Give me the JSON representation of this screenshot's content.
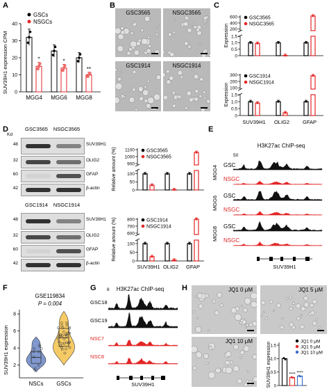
{
  "panels": {
    "A": {
      "letter": "A",
      "ylabel": "SUV39H1 expression CPM",
      "yticks": [
        "0",
        "10",
        "20",
        "30",
        "40"
      ],
      "legend": [
        "GSCs",
        "NSGCs"
      ],
      "groups": [
        "MGG4",
        "MGG6",
        "MGG8"
      ],
      "sig": [
        "*",
        "*",
        "**"
      ],
      "colors": {
        "gsc": "#000000",
        "nsgc": "#e32626"
      }
    },
    "B": {
      "letter": "B",
      "images": [
        {
          "caption": "GSC3565"
        },
        {
          "caption": "NSGC3565"
        },
        {
          "caption": "GSC1914"
        },
        {
          "caption": "NSGC1914"
        }
      ]
    },
    "C": {
      "letter": "C",
      "ylabel": "Expression",
      "top": {
        "legend": [
          "GSC3565",
          "NSGC3565"
        ],
        "yticks_low": [
          "0",
          "0.5",
          "1.0",
          "1.5"
        ],
        "yticks_high": [
          "200",
          "400",
          "600"
        ]
      },
      "bottom": {
        "legend": [
          "GSC1914",
          "NSGC1914"
        ],
        "yticks_low": [
          "0",
          "0.5",
          "1.0",
          "1.5"
        ],
        "yticks_high": [
          "100",
          "200",
          "300"
        ]
      },
      "genes": [
        "SUV39H1",
        "OLIG2",
        "GFAP"
      ]
    },
    "D": {
      "letter": "D",
      "kd": "Kd",
      "top": {
        "cols": [
          "GSC3565",
          "NSGC3565"
        ],
        "mw": [
          "48",
          "32",
          "60",
          "42"
        ],
        "bands": [
          "SUV39H1",
          "OLIG2",
          "GFAP",
          "β-actin"
        ],
        "ylabel": "Relative amount (%)",
        "legend": [
          "GSC3565",
          "NSGC3565"
        ],
        "yticks_low": [
          "0",
          "50",
          "100"
        ],
        "yticks_high": [
          "900",
          "1000",
          "1100"
        ]
      },
      "bottom": {
        "cols": [
          "GSC1914",
          "NSGC1914"
        ],
        "mw": [
          "48",
          "32",
          "60",
          "42"
        ],
        "bands": [
          "SUV39H1",
          "OLIG2",
          "GFAP",
          "β-actin"
        ],
        "ylabel": "Relative amount (%)",
        "legend": [
          "GSC1914",
          "NSGC1914"
        ],
        "yticks_low": [
          "0",
          "50",
          "100"
        ],
        "yticks_high": [
          "600",
          "700",
          "800"
        ]
      },
      "genes": [
        "SUV39H1",
        "OLIG2",
        "GFAP"
      ]
    },
    "E": {
      "letter": "E",
      "title": "H3K27ac ChIP-seq",
      "scale": "50",
      "rows": [
        {
          "sample": "MGG4",
          "tracks": [
            "GSC",
            "NSGC"
          ]
        },
        {
          "sample": "MGG6",
          "tracks": [
            "GSC",
            "NSGC"
          ]
        },
        {
          "sample": "MGG8",
          "tracks": [
            "GSC",
            "NSGC"
          ]
        }
      ],
      "gene": "SUV39H1"
    },
    "F": {
      "letter": "F",
      "dataset": "GSE119834",
      "pvalue": "P = 0.004",
      "ylabel": "SUV39H1 expression",
      "yticks": [
        "2",
        "4",
        "6",
        "8"
      ],
      "groups": [
        "NSCs",
        "GSCs"
      ],
      "colors": {
        "nscs": "#6a86c6",
        "gscs": "#f5c24b"
      }
    },
    "G": {
      "letter": "G",
      "title": "H3K27ac ChIP-seq",
      "scale": "8",
      "tracks": [
        "GSC18",
        "GSC19",
        "NSC7",
        "NSC8"
      ],
      "gene": "SUV39H1"
    },
    "H": {
      "letter": "H",
      "images": [
        {
          "caption": "JQ1 0 μM"
        },
        {
          "caption": "JQ1 5 μM"
        },
        {
          "caption": "JQ1 10 μM"
        }
      ],
      "legend": [
        "JQ1 0 μM",
        "JQ1 5 μM",
        "JQ1 10 μM"
      ],
      "ylabel": "SUV39H1 expression",
      "yticks": [
        "0",
        "0.5",
        "1.0",
        "1.5"
      ],
      "sig": [
        "****",
        "****"
      ],
      "colors": {
        "c0": "#000000",
        "c5": "#e32626",
        "c10": "#3a6bc9"
      }
    }
  },
  "chart_data": [
    {
      "type": "bar",
      "panel": "A",
      "categories": [
        "MGG4",
        "MGG6",
        "MGG8"
      ],
      "series": [
        {
          "name": "GSCs",
          "values": [
            32,
            24,
            20
          ]
        },
        {
          "name": "NSGCs",
          "values": [
            15,
            14,
            10
          ]
        }
      ],
      "ylabel": "SUV39H1 expression CPM",
      "ylim": [
        0,
        40
      ]
    },
    {
      "type": "bar",
      "panel": "C-top",
      "categories": [
        "SUV39H1",
        "OLIG2",
        "GFAP"
      ],
      "series": [
        {
          "name": "GSC3565",
          "values": [
            1.0,
            1.0,
            1.0
          ]
        },
        {
          "name": "NSGC3565",
          "values": [
            0.95,
            0.02,
            630
          ]
        }
      ],
      "ylabel": "Expression"
    },
    {
      "type": "bar",
      "panel": "C-bottom",
      "categories": [
        "SUV39H1",
        "OLIG2",
        "GFAP"
      ],
      "series": [
        {
          "name": "GSC1914",
          "values": [
            1.0,
            1.0,
            1.0
          ]
        },
        {
          "name": "NSGC1914",
          "values": [
            0.9,
            0.2,
            290
          ]
        }
      ],
      "ylabel": "Expression"
    },
    {
      "type": "bar",
      "panel": "D-top",
      "categories": [
        "SUV39H1",
        "OLIG2",
        "GFAP"
      ],
      "series": [
        {
          "name": "GSC3565",
          "values": [
            100,
            100,
            100
          ]
        },
        {
          "name": "NSGC3565",
          "values": [
            30,
            2,
            1060
          ]
        }
      ],
      "ylabel": "Relative amount (%)"
    },
    {
      "type": "bar",
      "panel": "D-bottom",
      "categories": [
        "SUV39H1",
        "OLIG2",
        "GFAP"
      ],
      "series": [
        {
          "name": "GSC1914",
          "values": [
            100,
            100,
            100
          ]
        },
        {
          "name": "NSGC1914",
          "values": [
            25,
            5,
            800
          ]
        }
      ],
      "ylabel": "Relative amount (%)"
    },
    {
      "type": "bar",
      "panel": "H",
      "categories": [
        "JQ1 0 μM",
        "JQ1 5 μM",
        "JQ1 10 μM"
      ],
      "values": [
        1.0,
        0.3,
        0.35
      ],
      "ylabel": "SUV39H1 expression",
      "ylim": [
        0,
        1.5
      ]
    }
  ]
}
